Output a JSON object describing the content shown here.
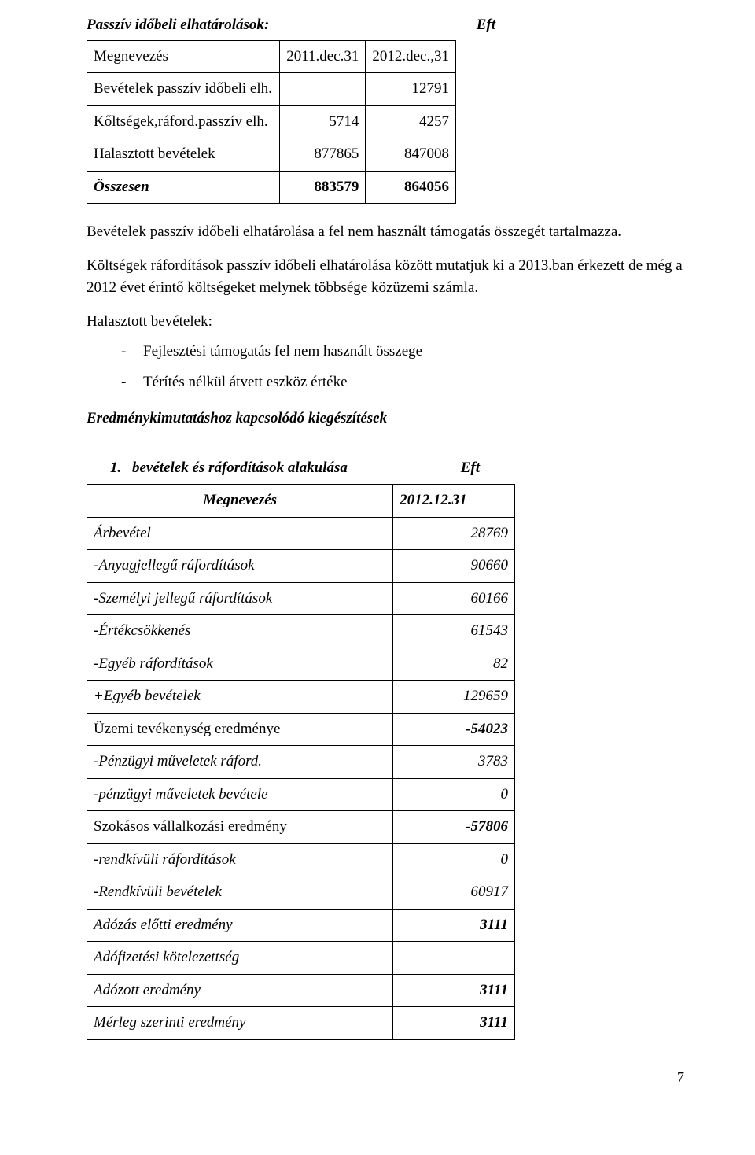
{
  "title": {
    "left": "Passzív időbeli elhatárolások:",
    "right": "Eft"
  },
  "table1": {
    "header": {
      "c0": "Megnevezés",
      "c1": "2011.dec.31",
      "c2": "2012.dec.,31"
    },
    "rows": [
      {
        "c0": "Bevételek passzív időbeli elh.",
        "c1": "",
        "c2": "12791"
      },
      {
        "c0": "Kőltségek,ráford.passzív elh.",
        "c1": "5714",
        "c2": "4257"
      },
      {
        "c0": "Halasztott bevételek",
        "c1": "877865",
        "c2": "847008"
      },
      {
        "c0": "Összesen",
        "c1": "883579",
        "c2": "864056"
      }
    ]
  },
  "para1": "Bevételek passzív időbeli elhatárolása a fel nem használt támogatás összegét tartalmazza.",
  "para2": "Költségek ráfordítások passzív időbeli elhatárolása között mutatjuk ki a 2013.ban érkezett de még a 2012 évet érintő költségeket melynek többsége közüzemi számla.",
  "para3": "Halasztott bevételek:",
  "bullets": [
    "Fejlesztési támogatás fel nem használt összege",
    "Térítés nélkül átvett eszköz értéke"
  ],
  "section_h": "Eredménykimutatáshoz kapcsolódó kiegészítések",
  "numbered": {
    "num": "1.",
    "txt": "bevételek és ráfordítások alakulása",
    "unit": "Eft"
  },
  "table2": {
    "header": {
      "c0": "Megnevezés",
      "c1": "2012.12.31"
    },
    "rows": [
      {
        "c0": "Árbevétel",
        "c1": "28769",
        "italic": true
      },
      {
        "c0": "-Anyagjellegű ráfordítások",
        "c1": "90660",
        "italic": true
      },
      {
        "c0": "-Személyi jellegű ráfordítások",
        "c1": "60166",
        "italic": true
      },
      {
        "c0": "-Értékcsökkenés",
        "c1": "61543",
        "italic": true
      },
      {
        "c0": "-Egyéb ráfordítások",
        "c1": "82",
        "italic": true
      },
      {
        "c0": "+Egyéb bevételek",
        "c1": "129659",
        "italic": true
      },
      {
        "c0": "Üzemi tevékenység eredménye",
        "c1": "-54023",
        "boldItalic": true
      },
      {
        "c0": "-Pénzügyi műveletek ráford.",
        "c1": "3783",
        "italic": true
      },
      {
        "c0": "-pénzügyi műveletek bevétele",
        "c1": "0",
        "italic": true
      },
      {
        "c0": "Szokásos vállalkozási eredmény",
        "c1": "-57806",
        "boldItalic": true
      },
      {
        "c0": "-rendkívüli ráfordítások",
        "c1": "0",
        "italic": true
      },
      {
        "c0": "-Rendkívüli bevételek",
        "c1": "60917",
        "italic": true
      },
      {
        "c0": "Adózás előtti eredmény",
        "c1": "3111",
        "boldItalic": true
      },
      {
        "c0": "Adófizetési kötelezettség",
        "c1": "",
        "italic": true
      },
      {
        "c0": "Adózott eredmény",
        "c1": "3111",
        "boldItalic": true
      },
      {
        "c0": "Mérleg szerinti eredmény",
        "c1": "3111",
        "boldItalic": true
      }
    ]
  },
  "page_number": "7"
}
